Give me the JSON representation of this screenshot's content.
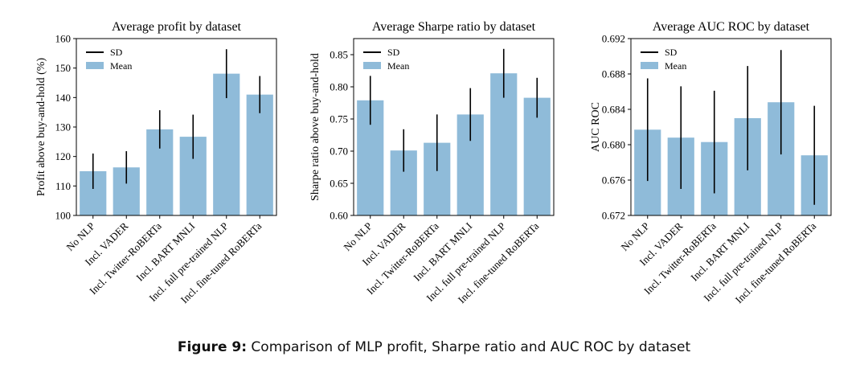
{
  "figure": {
    "label": "Figure 9:",
    "caption": "Comparison of MLP profit, Sharpe ratio and AUC ROC by dataset"
  },
  "chart_data": [
    {
      "type": "bar",
      "title": "Average profit by dataset",
      "xlabel": "",
      "ylabel": "Profit above buy-and-hold (%)",
      "categories": [
        "No NLP",
        "Incl. VADER",
        "Incl. Twitter-RoBERTa",
        "Incl. BART MNLI",
        "Incl. full pre-trained NLP",
        "Incl. fine-tuned RoBERTa"
      ],
      "values": [
        115.0,
        116.3,
        129.2,
        126.7,
        148.1,
        141.0
      ],
      "sd": [
        6.0,
        5.5,
        6.5,
        7.5,
        8.3,
        6.3
      ],
      "ylim": [
        100,
        160
      ],
      "yticks": [
        "100",
        "110",
        "120",
        "130",
        "140",
        "150",
        "160"
      ],
      "legend": [
        "SD",
        "Mean"
      ],
      "legend_position": "top-left",
      "bar_color": "#8fbbd9",
      "errorbar_color": "#000000"
    },
    {
      "type": "bar",
      "title": "Average Sharpe ratio by dataset",
      "xlabel": "",
      "ylabel": "Sharpe ratio above buy-and-hold",
      "categories": [
        "No NLP",
        "Incl. VADER",
        "Incl. Twitter-RoBERTa",
        "Incl. BART MNLI",
        "Incl. full pre-trained NLP",
        "Incl. fine-tuned RoBERTa"
      ],
      "values": [
        0.779,
        0.701,
        0.713,
        0.757,
        0.821,
        0.783
      ],
      "sd": [
        0.038,
        0.033,
        0.044,
        0.041,
        0.038,
        0.031
      ],
      "ylim": [
        0.6,
        0.875
      ],
      "yticks": [
        "0.60",
        "0.65",
        "0.70",
        "0.75",
        "0.80",
        "0.85"
      ],
      "legend": [
        "SD",
        "Mean"
      ],
      "legend_position": "top-left",
      "bar_color": "#8fbbd9",
      "errorbar_color": "#000000"
    },
    {
      "type": "bar",
      "title": "Average AUC ROC by dataset",
      "xlabel": "",
      "ylabel": "AUC ROC",
      "categories": [
        "No NLP",
        "Incl. VADER",
        "Incl. Twitter-RoBERTa",
        "Incl. BART MNLI",
        "Incl. full pre-trained NLP",
        "Incl. fine-tuned RoBERTa"
      ],
      "values": [
        0.6817,
        0.6808,
        0.6803,
        0.683,
        0.6848,
        0.6788
      ],
      "sd": [
        0.0058,
        0.0058,
        0.0058,
        0.0059,
        0.0059,
        0.0056
      ],
      "ylim": [
        0.672,
        0.692
      ],
      "yticks": [
        "0.672",
        "0.676",
        "0.680",
        "0.684",
        "0.688",
        "0.692"
      ],
      "legend": [
        "SD",
        "Mean"
      ],
      "legend_position": "top-left",
      "bar_color": "#8fbbd9",
      "errorbar_color": "#000000"
    }
  ]
}
